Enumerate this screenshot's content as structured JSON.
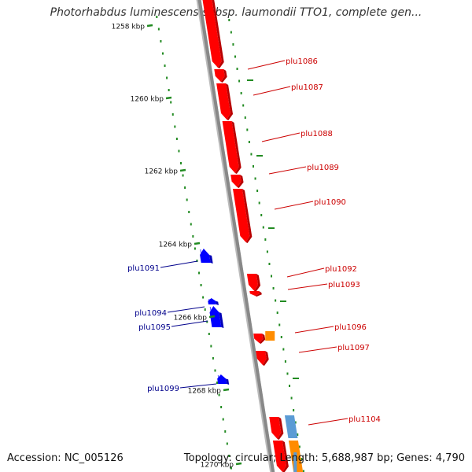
{
  "title": "Photorhabdus luminescens subsp. laumondii TTO1, complete gen...",
  "accession": "Accession: NC_005126",
  "topology": "Topology: circular; Length: 5,688,987 bp; Genes: 4,790",
  "colors": {
    "forward_gene": "#ff0000",
    "reverse_gene": "#0000ff",
    "orange_feature": "#ff8c00",
    "lightblue_feature": "#5b9bd5",
    "backbone": "#888888",
    "kbp_tick": "#228b22",
    "forward_label": "#cc0000",
    "reverse_label": "#00008b"
  },
  "kbp_ticks": [
    "1258 kbp",
    "1260 kbp",
    "1262 kbp",
    "1264 kbp",
    "1266 kbp",
    "1268 kbp",
    "1270 kbp"
  ],
  "forward_labels": [
    "plu1086",
    "plu1087",
    "plu1088",
    "plu1089",
    "plu1090",
    "plu1092",
    "plu1093",
    "plu1096",
    "plu1097",
    "plu1104"
  ],
  "reverse_labels": [
    "plu1091",
    "plu1094",
    "plu1095",
    "plu1099"
  ]
}
